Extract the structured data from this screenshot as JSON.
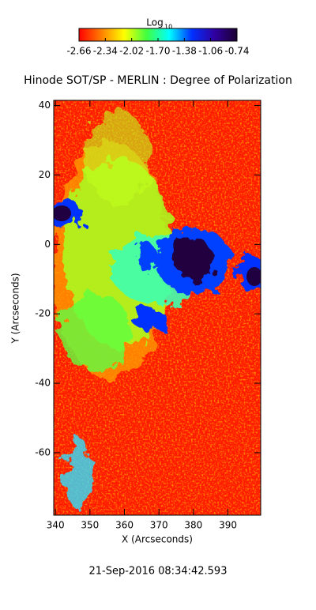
{
  "chart_data": {
    "type": "image",
    "title": "Hinode SOT/SP - MERLIN : Degree of Polarization",
    "xlabel": "X (Arcseconds)",
    "ylabel": "Y (Arcseconds)",
    "footer": "21-Sep-2016 08:34:42.593",
    "xlim": [
      339.5,
      399.5
    ],
    "ylim": [
      -78,
      41.5
    ],
    "xticks": [
      340,
      350,
      360,
      370,
      380,
      390
    ],
    "yticks": [
      -60,
      -40,
      -20,
      0,
      20,
      40
    ],
    "colorbar": {
      "title": "Log",
      "title_subscript": "10",
      "lim": [
        -2.66,
        -0.74
      ],
      "ticks": [
        -2.66,
        -2.34,
        -2.02,
        {
          "value": -1.7,
          "label": "-1.70"
        },
        -1.38,
        -1.06,
        -0.74
      ],
      "colors": [
        "#ff0000",
        "#ff8000",
        "#ffff00",
        "#40ff40",
        "#00ffff",
        "#0030ff",
        "#3000a0",
        "#1a0030"
      ]
    }
  }
}
